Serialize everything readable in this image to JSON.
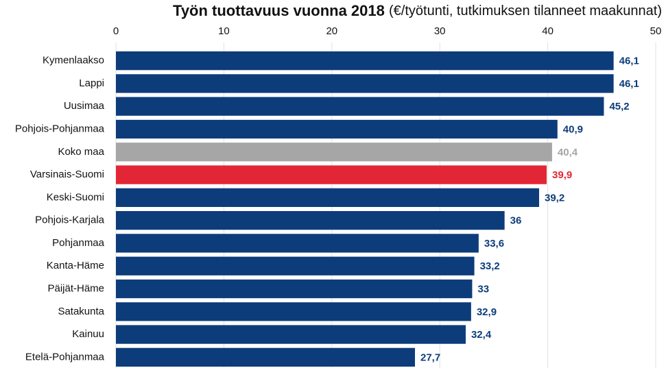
{
  "chart_data": {
    "type": "barh",
    "title": "Työn tuottavuus vuonna 2018",
    "subtitle": "(€/työtunti, tutkimuksen tilanneet maakunnat)",
    "categories": [
      "Kymenlaakso",
      "Lappi",
      "Uusimaa",
      "Pohjois-Pohjanmaa",
      "Koko maa",
      "Varsinais-Suomi",
      "Keski-Suomi",
      "Pohjois-Karjala",
      "Pohjanmaa",
      "Kanta-Häme",
      "Päijät-Häme",
      "Satakunta",
      "Kainuu",
      "Etelä-Pohjanmaa"
    ],
    "values": [
      46.1,
      46.1,
      45.2,
      40.9,
      40.4,
      39.9,
      39.2,
      36,
      33.6,
      33.2,
      33,
      32.9,
      32.4,
      27.7
    ],
    "value_labels": [
      "46,1",
      "46,1",
      "45,2",
      "40,9",
      "40,4",
      "39,9",
      "39,2",
      "36",
      "33,6",
      "33,2",
      "33",
      "32,9",
      "32,4",
      "27,7"
    ],
    "colors": [
      "#0d3c7b",
      "#0d3c7b",
      "#0d3c7b",
      "#0d3c7b",
      "#a6a6a6",
      "#e32636",
      "#0d3c7b",
      "#0d3c7b",
      "#0d3c7b",
      "#0d3c7b",
      "#0d3c7b",
      "#0d3c7b",
      "#0d3c7b",
      "#0d3c7b"
    ],
    "xlim": [
      0,
      50
    ],
    "xticks": [
      0,
      10,
      20,
      30,
      40,
      50
    ],
    "grid": true
  }
}
